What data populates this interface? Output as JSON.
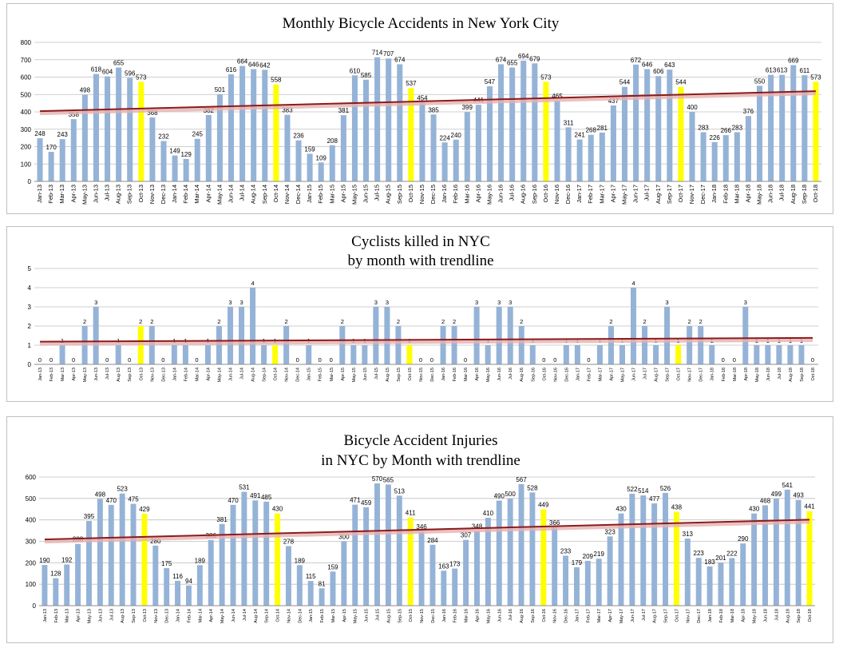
{
  "charts": {
    "accidents": {
      "title_lines": [
        "Monthly Bicycle Accidents in New York City"
      ],
      "type": "bar",
      "ylim": [
        0,
        800
      ],
      "yticks": [
        0,
        100,
        200,
        300,
        400,
        500,
        600,
        700,
        800
      ],
      "trendline": [
        404,
        519
      ]
    },
    "killed": {
      "title_lines": [
        "Cyclists killed in NYC",
        "by month with trendline"
      ],
      "type": "bar",
      "ylim": [
        0,
        5
      ],
      "yticks": [
        0,
        1,
        2,
        3,
        4,
        5
      ],
      "trendline": [
        1.18,
        1.38
      ]
    },
    "injuries": {
      "title_lines": [
        "Bicycle Accident Injuries",
        "in NYC by Month with trendline"
      ],
      "type": "bar",
      "ylim": [
        0,
        600
      ],
      "yticks": [
        0,
        100,
        200,
        300,
        400,
        500,
        600
      ],
      "trendline": [
        309,
        401
      ]
    }
  },
  "colors": {
    "bar": "#95b3d7",
    "highlight": "#ffff00",
    "trendline": "#8b1a1a",
    "trendline_shadow": "#e6b0b0",
    "gridline": "#bfbfbf",
    "border": "#bfbfbf"
  },
  "chart_data": [
    {
      "type": "bar",
      "title": "Monthly Bicycle Accidents in New York City",
      "categories": [
        "Jan-13",
        "Feb-13",
        "Mar-13",
        "Apr-13",
        "May-13",
        "Jun-13",
        "Jul-13",
        "Aug-13",
        "Sep-13",
        "Oct-13",
        "Nov-13",
        "Dec-13",
        "Jan-14",
        "Feb-14",
        "Mar-14",
        "Apr-14",
        "May-14",
        "Jun-14",
        "Jul-14",
        "Aug-14",
        "Sep-14",
        "Oct-14",
        "Nov-14",
        "Dec-14",
        "Jan-15",
        "Feb-15",
        "Mar-15",
        "Apr-15",
        "May-15",
        "Jun-15",
        "Jul-15",
        "Aug-15",
        "Sep-15",
        "Oct-15",
        "Nov-15",
        "Dec-15",
        "Jan-16",
        "Feb-16",
        "Mar-16",
        "Apr-16",
        "May-16",
        "Jun-16",
        "Jul-16",
        "Aug-16",
        "Sep-16",
        "Oct-16",
        "Nov-16",
        "Dec-16",
        "Jan-17",
        "Feb-17",
        "Mar-17",
        "Apr-17",
        "May-17",
        "Jun-17",
        "Jul-17",
        "Aug-17",
        "Sep-17",
        "Oct-17",
        "Nov-17",
        "Dec-17",
        "Jan-18",
        "Feb-18",
        "Mar-18",
        "Apr-18",
        "May-18",
        "Jun-18",
        "Jul-18",
        "Aug-18",
        "Sep-18",
        "Oct-18"
      ],
      "values": [
        248,
        170,
        243,
        358,
        498,
        618,
        604,
        655,
        596,
        573,
        368,
        232,
        149,
        129,
        245,
        382,
        501,
        616,
        664,
        646,
        642,
        558,
        383,
        236,
        159,
        109,
        208,
        381,
        610,
        585,
        714,
        707,
        674,
        537,
        454,
        385,
        224,
        240,
        399,
        441,
        547,
        674,
        655,
        694,
        679,
        573,
        465,
        311,
        241,
        268,
        281,
        437,
        544,
        672,
        646,
        606,
        643,
        544,
        400,
        283,
        226,
        266,
        283,
        376,
        550,
        613,
        613,
        669,
        611,
        573
      ],
      "highlight_categories": [
        "Oct-13",
        "Oct-14",
        "Oct-15",
        "Oct-16",
        "Oct-17",
        "Oct-18"
      ],
      "ylim": [
        0,
        800
      ],
      "trendline": true,
      "grid": true
    },
    {
      "type": "bar",
      "title": "Cyclists killed in NYC by month with trendline",
      "categories": [
        "Jan-13",
        "Feb-13",
        "Mar-13",
        "Apr-13",
        "May-13",
        "Jun-13",
        "Jul-13",
        "Aug-13",
        "Sep-13",
        "Oct-13",
        "Nov-13",
        "Dec-13",
        "Jan-14",
        "Feb-14",
        "Mar-14",
        "Apr-14",
        "May-14",
        "Jun-14",
        "Jul-14",
        "Aug-14",
        "Sep-14",
        "Oct-14",
        "Nov-14",
        "Dec-14",
        "Jan-15",
        "Feb-15",
        "Mar-15",
        "Apr-15",
        "May-15",
        "Jun-15",
        "Jul-15",
        "Aug-15",
        "Sep-15",
        "Oct-15",
        "Nov-15",
        "Dec-15",
        "Jan-16",
        "Feb-16",
        "Mar-16",
        "Apr-16",
        "May-16",
        "Jun-16",
        "Jul-16",
        "Aug-16",
        "Sep-16",
        "Oct-16",
        "Nov-16",
        "Dec-16",
        "Jan-17",
        "Feb-17",
        "Mar-17",
        "Apr-17",
        "May-17",
        "Jun-17",
        "Jul-17",
        "Aug-17",
        "Sep-17",
        "Oct-17",
        "Nov-17",
        "Dec-17",
        "Jan-18",
        "Feb-18",
        "Mar-18",
        "Apr-18",
        "May-18",
        "Jun-18",
        "Jul-18",
        "Aug-18",
        "Sep-18",
        "Oct-18"
      ],
      "values": [
        0,
        0,
        1,
        0,
        2,
        3,
        0,
        1,
        0,
        2,
        2,
        0,
        1,
        1,
        0,
        1,
        2,
        3,
        3,
        4,
        1,
        1,
        2,
        0,
        1,
        0,
        0,
        2,
        1,
        1,
        3,
        3,
        2,
        1,
        0,
        0,
        2,
        2,
        0,
        3,
        1,
        3,
        3,
        2,
        1,
        0,
        0,
        1,
        1,
        0,
        1,
        2,
        1,
        4,
        2,
        1,
        3,
        1,
        2,
        2,
        1,
        0,
        0,
        3,
        1,
        1,
        1,
        1,
        1,
        0
      ],
      "highlight_categories": [
        "Oct-13",
        "Oct-14",
        "Oct-15",
        "Oct-16",
        "Oct-17",
        "Oct-18"
      ],
      "ylim": [
        0,
        5
      ],
      "trendline": true,
      "grid": true
    },
    {
      "type": "bar",
      "title": "Bicycle Accident Injuries in NYC by Month with trendline",
      "categories": [
        "Jan-13",
        "Feb-13",
        "Mar-13",
        "Apr-13",
        "May-13",
        "Jun-13",
        "Jul-13",
        "Aug-13",
        "Sep-13",
        "Oct-13",
        "Nov-13",
        "Dec-13",
        "Jan-14",
        "Feb-14",
        "Mar-14",
        "Apr-14",
        "May-14",
        "Jun-14",
        "Jul-14",
        "Aug-14",
        "Sep-14",
        "Oct-14",
        "Nov-14",
        "Dec-14",
        "Jan-15",
        "Feb-15",
        "Mar-15",
        "Apr-15",
        "May-15",
        "Jun-15",
        "Jul-15",
        "Aug-15",
        "Sep-15",
        "Oct-15",
        "Nov-15",
        "Dec-15",
        "Jan-16",
        "Feb-16",
        "Mar-16",
        "Apr-16",
        "May-16",
        "Jun-16",
        "Jul-16",
        "Aug-16",
        "Sep-16",
        "Oct-16",
        "Nov-16",
        "Dec-16",
        "Jan-17",
        "Feb-17",
        "Mar-17",
        "Apr-17",
        "May-17",
        "Jun-17",
        "Jul-17",
        "Aug-17",
        "Sep-17",
        "Oct-17",
        "Nov-17",
        "Dec-17",
        "Jan-18",
        "Feb-18",
        "Mar-18",
        "Apr-18",
        "May-18",
        "Jun-18",
        "Jul-18",
        "Aug-18",
        "Sep-18",
        "Oct-18"
      ],
      "values": [
        190,
        128,
        192,
        288,
        395,
        498,
        470,
        523,
        475,
        429,
        280,
        175,
        116,
        94,
        189,
        306,
        381,
        470,
        531,
        491,
        485,
        430,
        278,
        189,
        115,
        81,
        159,
        300,
        471,
        459,
        570,
        565,
        513,
        411,
        346,
        284,
        163,
        173,
        307,
        348,
        410,
        490,
        500,
        567,
        528,
        449,
        366,
        233,
        179,
        209,
        219,
        323,
        430,
        522,
        514,
        477,
        526,
        438,
        313,
        223,
        183,
        201,
        222,
        290,
        430,
        468,
        499,
        541,
        493,
        441
      ],
      "highlight_categories": [
        "Oct-13",
        "Oct-14",
        "Oct-15",
        "Oct-16",
        "Oct-17",
        "Oct-18"
      ],
      "ylim": [
        0,
        600
      ],
      "trendline": true,
      "grid": true
    }
  ]
}
